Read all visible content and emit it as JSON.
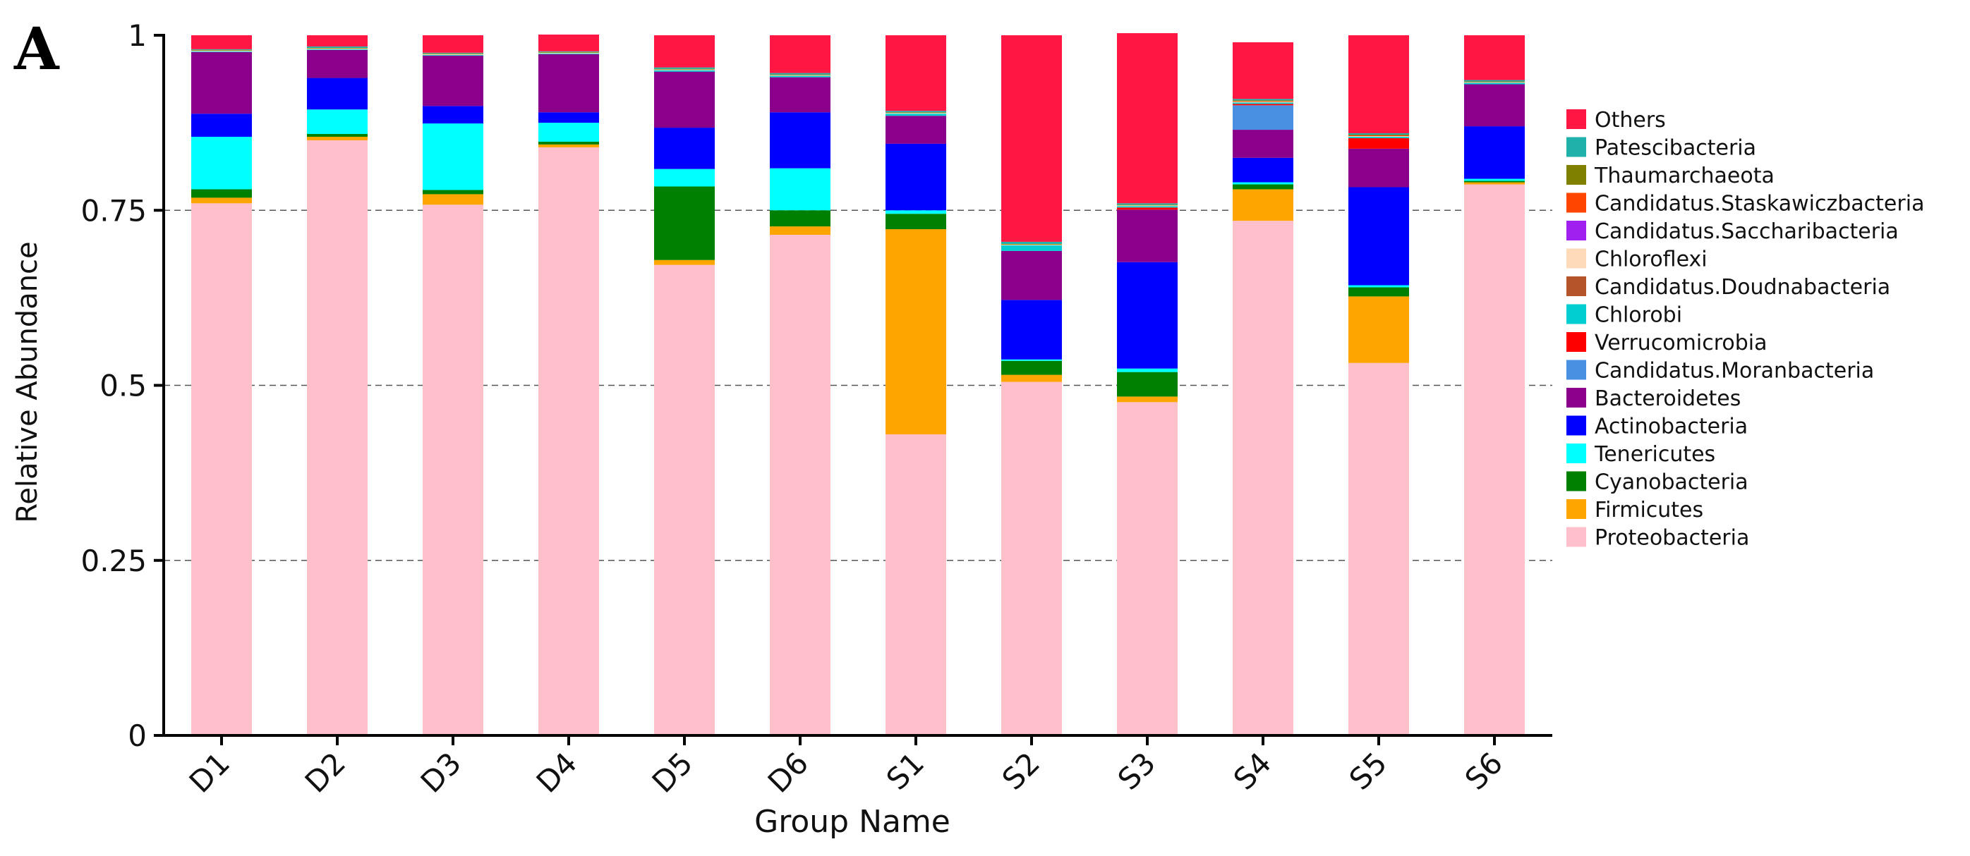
{
  "panel_label": "A",
  "chart_data": {
    "type": "stacked-bar",
    "xlabel": "Group Name",
    "ylabel": "Relative Abundance",
    "ylim": [
      0,
      1
    ],
    "yticks": [
      0,
      0.25,
      0.5,
      0.75,
      1
    ],
    "ytick_labels": [
      "0",
      "0.25",
      "0.5",
      "0.75",
      "1"
    ],
    "grid": "dashed horizontal",
    "legend_position": "right",
    "categories": [
      "D1",
      "D2",
      "D3",
      "D4",
      "D5",
      "D6",
      "S1",
      "S2",
      "S3",
      "S4",
      "S5",
      "S6"
    ],
    "series": [
      {
        "name": "Proteobacteria",
        "color": "#FFC0CB",
        "values": [
          0.76,
          0.85,
          0.758,
          0.84,
          0.672,
          0.715,
          0.43,
          0.505,
          0.476,
          0.735,
          0.532,
          0.787
        ]
      },
      {
        "name": "Firmicutes",
        "color": "#FFA500",
        "values": [
          0.008,
          0.005,
          0.015,
          0.004,
          0.007,
          0.012,
          0.293,
          0.01,
          0.008,
          0.045,
          0.095,
          0.003
        ]
      },
      {
        "name": "Cyanobacteria",
        "color": "#008000",
        "values": [
          0.012,
          0.004,
          0.006,
          0.004,
          0.105,
          0.023,
          0.022,
          0.02,
          0.035,
          0.007,
          0.013,
          0.002
        ]
      },
      {
        "name": "Tenericutes",
        "color": "#00FFFF",
        "values": [
          0.075,
          0.035,
          0.095,
          0.027,
          0.025,
          0.06,
          0.005,
          0.002,
          0.005,
          0.003,
          0.003,
          0.003
        ]
      },
      {
        "name": "Actinobacteria",
        "color": "#0000FF",
        "values": [
          0.033,
          0.045,
          0.025,
          0.015,
          0.059,
          0.08,
          0.095,
          0.085,
          0.152,
          0.035,
          0.14,
          0.075
        ]
      },
      {
        "name": "Bacteroidetes",
        "color": "#8B008B",
        "values": [
          0.088,
          0.04,
          0.072,
          0.083,
          0.08,
          0.05,
          0.04,
          0.07,
          0.075,
          0.04,
          0.055,
          0.06
        ]
      },
      {
        "name": "Candidatus.Moranbacteria",
        "color": "#4A90E2",
        "values": [
          0.0,
          0.0,
          0.0,
          0.0,
          0.0,
          0.0,
          0.0,
          0.0,
          0.0,
          0.035,
          0.0,
          0.0
        ]
      },
      {
        "name": "Verrucomicrobia",
        "color": "#FF0000",
        "values": [
          0.0,
          0.0,
          0.0,
          0.0,
          0.0,
          0.0,
          0.0,
          0.0,
          0.003,
          0.002,
          0.015,
          0.0
        ]
      },
      {
        "name": "Chlorobi",
        "color": "#00CED1",
        "values": [
          0.001,
          0.001,
          0.001,
          0.001,
          0.002,
          0.002,
          0.003,
          0.008,
          0.002,
          0.002,
          0.002,
          0.002
        ]
      },
      {
        "name": "Candidatus.Doudnabacteria",
        "color": "#B5532A",
        "values": [
          0.0,
          0.0,
          0.0,
          0.0,
          0.0,
          0.0,
          0.0,
          0.0,
          0.0,
          0.0,
          0.0,
          0.0
        ]
      },
      {
        "name": "Chloroflexi",
        "color": "#FFDAB9",
        "values": [
          0.001,
          0.001,
          0.001,
          0.001,
          0.001,
          0.001,
          0.001,
          0.001,
          0.001,
          0.001,
          0.001,
          0.001
        ]
      },
      {
        "name": "Candidatus.Saccharibacteria",
        "color": "#A020F0",
        "values": [
          0.0,
          0.0,
          0.0,
          0.0,
          0.0,
          0.0,
          0.0,
          0.0,
          0.0,
          0.0,
          0.0,
          0.0
        ]
      },
      {
        "name": "Candidatus.Staskawiczbacteria",
        "color": "#FF4500",
        "values": [
          0.0,
          0.0,
          0.0,
          0.0,
          0.0,
          0.0,
          0.0,
          0.0,
          0.0,
          0.001,
          0.001,
          0.0
        ]
      },
      {
        "name": "Thaumarchaeota",
        "color": "#808000",
        "values": [
          0.001,
          0.001,
          0.001,
          0.001,
          0.001,
          0.001,
          0.001,
          0.001,
          0.001,
          0.001,
          0.001,
          0.001
        ]
      },
      {
        "name": "Patescibacteria",
        "color": "#20B2AA",
        "values": [
          0.001,
          0.002,
          0.001,
          0.001,
          0.002,
          0.002,
          0.002,
          0.003,
          0.002,
          0.002,
          0.002,
          0.002
        ]
      },
      {
        "name": "Others",
        "color": "#FF1744",
        "values": [
          0.02,
          0.016,
          0.025,
          0.024,
          0.046,
          0.054,
          0.108,
          0.295,
          0.243,
          0.081,
          0.14,
          0.064
        ]
      }
    ]
  }
}
